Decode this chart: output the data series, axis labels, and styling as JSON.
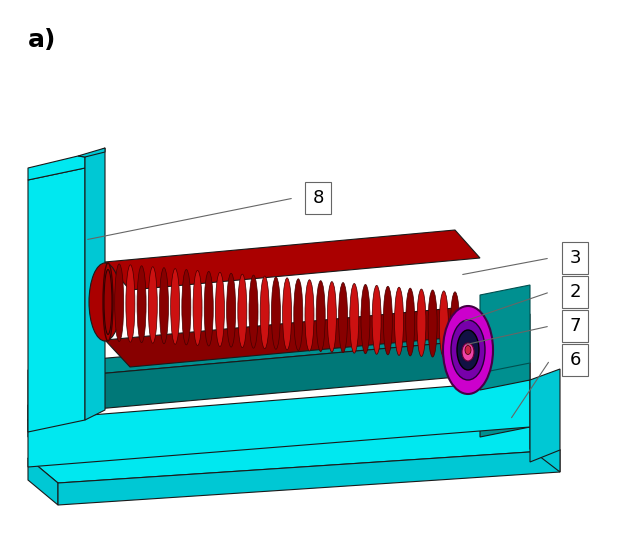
{
  "title": "a)",
  "bg_color": "#ffffff",
  "cyan_light": "#00e8f0",
  "cyan_mid": "#00c8d4",
  "teal_top": "#009090",
  "teal_side": "#007878",
  "red_main": "#cc1111",
  "red_dark": "#880000",
  "red_mid": "#aa0000",
  "magenta": "#cc00cc",
  "purple_inner": "#7700aa",
  "dark_navy": "#111144",
  "pink": "#ee44aa",
  "label_8": "8",
  "label_3": "3",
  "label_2": "2",
  "label_7": "7",
  "label_6": "6"
}
